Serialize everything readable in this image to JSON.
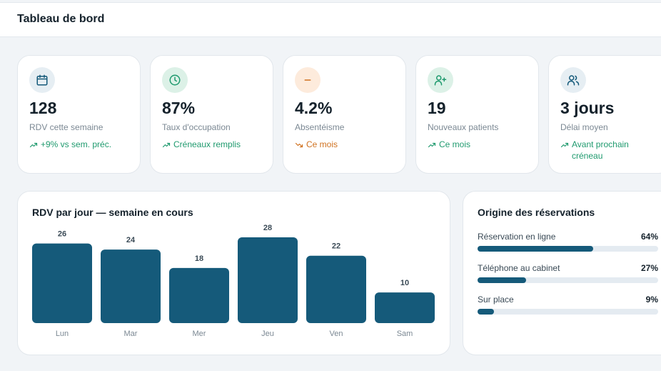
{
  "header": {
    "title": "Tableau de bord"
  },
  "colors": {
    "accent": "#155a7a",
    "positive": "#1f9a6e",
    "warning": "#d0711f"
  },
  "kpis": [
    {
      "icon": "calendar-icon",
      "value": "128",
      "label": "RDV cette semaine",
      "trend": "+9% vs sem. préc.",
      "trend_type": "up",
      "icon_bg": "#e6eef3",
      "icon_color": "#155a7a"
    },
    {
      "icon": "clock-icon",
      "value": "87%",
      "label": "Taux d'occupation",
      "trend": "Créneaux remplis",
      "trend_type": "up",
      "icon_bg": "#dcf1e7",
      "icon_color": "#1f9a6e"
    },
    {
      "icon": "minus-icon",
      "value": "4.2%",
      "label": "Absentéisme",
      "trend": "Ce mois",
      "trend_type": "down",
      "icon_bg": "#fdebdc",
      "icon_color": "#d0711f"
    },
    {
      "icon": "user-plus-icon",
      "value": "19",
      "label": "Nouveaux patients",
      "trend": "Ce mois",
      "trend_type": "up",
      "icon_bg": "#dcf1e7",
      "icon_color": "#1f9a6e"
    },
    {
      "icon": "users-icon",
      "value": "3 jours",
      "label": "Délai moyen",
      "trend": "Avant prochain créneau",
      "trend_type": "up",
      "icon_bg": "#e6eef3",
      "icon_color": "#155a7a"
    }
  ],
  "bar_chart": {
    "title": "RDV par jour — semaine en cours"
  },
  "chart_data": {
    "type": "bar",
    "title": "RDV par jour — semaine en cours",
    "categories": [
      "Lun",
      "Mar",
      "Mer",
      "Jeu",
      "Ven",
      "Sam"
    ],
    "values": [
      26,
      24,
      18,
      28,
      22,
      10
    ],
    "ylim": [
      0,
      28
    ],
    "grid": false,
    "color": "#155a7a"
  },
  "origin": {
    "title": "Origine des réservations",
    "rows": [
      {
        "label": "Réservation en ligne",
        "pct_label": "64%",
        "pct": 64
      },
      {
        "label": "Téléphone au cabinet",
        "pct_label": "27%",
        "pct": 27
      },
      {
        "label": "Sur place",
        "pct_label": "9%",
        "pct": 9
      }
    ]
  }
}
